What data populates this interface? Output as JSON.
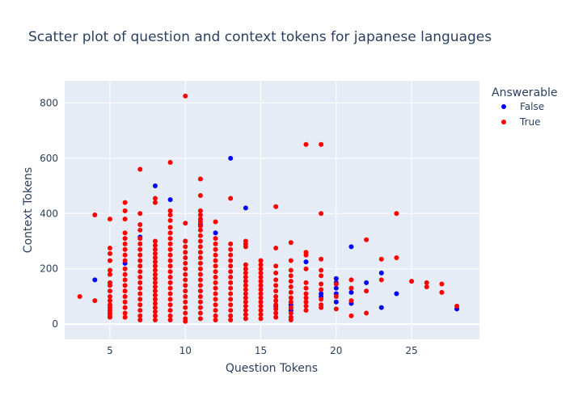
{
  "chart_data": {
    "type": "scatter",
    "title": "Scatter plot of question and context tokens for japanese languages",
    "xlabel": "Question Tokens",
    "ylabel": "Context Tokens",
    "xlim": [
      2,
      29.5
    ],
    "ylim": [
      -55,
      880
    ],
    "xticks": [
      5,
      10,
      15,
      20,
      25
    ],
    "yticks": [
      0,
      200,
      400,
      600,
      800
    ],
    "grid": true,
    "legend": {
      "title": "Answerable",
      "placement": "top-right"
    },
    "colors": {
      "plot_bg": "#e5ecf6",
      "grid": "#ffffff",
      "text": "#2a3f5f"
    },
    "series": [
      {
        "name": "False",
        "color": "#0000ff",
        "points": [
          [
            4,
            160
          ],
          [
            6,
            220
          ],
          [
            7,
            315
          ],
          [
            8,
            500
          ],
          [
            9,
            450
          ],
          [
            10,
            300
          ],
          [
            11,
            360
          ],
          [
            12,
            330
          ],
          [
            13,
            600
          ],
          [
            14,
            420
          ],
          [
            16,
            65
          ],
          [
            17,
            50
          ],
          [
            17,
            70
          ],
          [
            18,
            225
          ],
          [
            19,
            100
          ],
          [
            19,
            110
          ],
          [
            20,
            80
          ],
          [
            20,
            110
          ],
          [
            20,
            130
          ],
          [
            20,
            150
          ],
          [
            20,
            165
          ],
          [
            21,
            75
          ],
          [
            21,
            115
          ],
          [
            21,
            280
          ],
          [
            22,
            150
          ],
          [
            23,
            60
          ],
          [
            23,
            185
          ],
          [
            24,
            110
          ],
          [
            28,
            55
          ]
        ]
      },
      {
        "name": "True",
        "color": "#ff0000",
        "points": [
          [
            3,
            100
          ],
          [
            4,
            395
          ],
          [
            4,
            85
          ],
          [
            5,
            380
          ],
          [
            5,
            275
          ],
          [
            5,
            255
          ],
          [
            5,
            230
          ],
          [
            5,
            195
          ],
          [
            5,
            180
          ],
          [
            5,
            150
          ],
          [
            5,
            140
          ],
          [
            5,
            120
          ],
          [
            5,
            100
          ],
          [
            5,
            85
          ],
          [
            5,
            70
          ],
          [
            5,
            60
          ],
          [
            5,
            50
          ],
          [
            5,
            40
          ],
          [
            5,
            30
          ],
          [
            5,
            25
          ],
          [
            6,
            440
          ],
          [
            6,
            410
          ],
          [
            6,
            380
          ],
          [
            6,
            330
          ],
          [
            6,
            310
          ],
          [
            6,
            290
          ],
          [
            6,
            270
          ],
          [
            6,
            250
          ],
          [
            6,
            230
          ],
          [
            6,
            200
          ],
          [
            6,
            180
          ],
          [
            6,
            160
          ],
          [
            6,
            140
          ],
          [
            6,
            120
          ],
          [
            6,
            100
          ],
          [
            6,
            80
          ],
          [
            6,
            60
          ],
          [
            6,
            40
          ],
          [
            6,
            25
          ],
          [
            7,
            560
          ],
          [
            7,
            400
          ],
          [
            7,
            360
          ],
          [
            7,
            340
          ],
          [
            7,
            310
          ],
          [
            7,
            290
          ],
          [
            7,
            270
          ],
          [
            7,
            250
          ],
          [
            7,
            230
          ],
          [
            7,
            210
          ],
          [
            7,
            190
          ],
          [
            7,
            170
          ],
          [
            7,
            150
          ],
          [
            7,
            130
          ],
          [
            7,
            110
          ],
          [
            7,
            90
          ],
          [
            7,
            70
          ],
          [
            7,
            50
          ],
          [
            7,
            30
          ],
          [
            7,
            15
          ],
          [
            8,
            455
          ],
          [
            8,
            440
          ],
          [
            8,
            300
          ],
          [
            8,
            285
          ],
          [
            8,
            270
          ],
          [
            8,
            255
          ],
          [
            8,
            240
          ],
          [
            8,
            225
          ],
          [
            8,
            210
          ],
          [
            8,
            195
          ],
          [
            8,
            180
          ],
          [
            8,
            165
          ],
          [
            8,
            150
          ],
          [
            8,
            135
          ],
          [
            8,
            120
          ],
          [
            8,
            105
          ],
          [
            8,
            90
          ],
          [
            8,
            75
          ],
          [
            8,
            60
          ],
          [
            8,
            45
          ],
          [
            8,
            30
          ],
          [
            8,
            15
          ],
          [
            9,
            585
          ],
          [
            9,
            410
          ],
          [
            9,
            395
          ],
          [
            9,
            375
          ],
          [
            9,
            350
          ],
          [
            9,
            330
          ],
          [
            9,
            310
          ],
          [
            9,
            290
          ],
          [
            9,
            270
          ],
          [
            9,
            250
          ],
          [
            9,
            230
          ],
          [
            9,
            210
          ],
          [
            9,
            190
          ],
          [
            9,
            170
          ],
          [
            9,
            150
          ],
          [
            9,
            130
          ],
          [
            9,
            110
          ],
          [
            9,
            90
          ],
          [
            9,
            70
          ],
          [
            9,
            50
          ],
          [
            9,
            30
          ],
          [
            9,
            15
          ],
          [
            10,
            825
          ],
          [
            10,
            365
          ],
          [
            10,
            300
          ],
          [
            10,
            280
          ],
          [
            10,
            260
          ],
          [
            10,
            240
          ],
          [
            10,
            220
          ],
          [
            10,
            200
          ],
          [
            10,
            180
          ],
          [
            10,
            160
          ],
          [
            10,
            140
          ],
          [
            10,
            120
          ],
          [
            10,
            100
          ],
          [
            10,
            80
          ],
          [
            10,
            60
          ],
          [
            10,
            40
          ],
          [
            10,
            20
          ],
          [
            10,
            10
          ],
          [
            11,
            525
          ],
          [
            11,
            465
          ],
          [
            11,
            410
          ],
          [
            11,
            395
          ],
          [
            11,
            380
          ],
          [
            11,
            370
          ],
          [
            11,
            355
          ],
          [
            11,
            340
          ],
          [
            11,
            320
          ],
          [
            11,
            300
          ],
          [
            11,
            280
          ],
          [
            11,
            260
          ],
          [
            11,
            240
          ],
          [
            11,
            220
          ],
          [
            11,
            200
          ],
          [
            11,
            180
          ],
          [
            11,
            160
          ],
          [
            11,
            140
          ],
          [
            11,
            120
          ],
          [
            11,
            100
          ],
          [
            11,
            80
          ],
          [
            11,
            60
          ],
          [
            11,
            40
          ],
          [
            11,
            20
          ],
          [
            12,
            370
          ],
          [
            12,
            310
          ],
          [
            12,
            290
          ],
          [
            12,
            270
          ],
          [
            12,
            250
          ],
          [
            12,
            230
          ],
          [
            12,
            210
          ],
          [
            12,
            190
          ],
          [
            12,
            170
          ],
          [
            12,
            150
          ],
          [
            12,
            130
          ],
          [
            12,
            110
          ],
          [
            12,
            90
          ],
          [
            12,
            70
          ],
          [
            12,
            50
          ],
          [
            12,
            30
          ],
          [
            12,
            15
          ],
          [
            13,
            455
          ],
          [
            13,
            290
          ],
          [
            13,
            270
          ],
          [
            13,
            250
          ],
          [
            13,
            230
          ],
          [
            13,
            210
          ],
          [
            13,
            190
          ],
          [
            13,
            170
          ],
          [
            13,
            150
          ],
          [
            13,
            130
          ],
          [
            13,
            110
          ],
          [
            13,
            90
          ],
          [
            13,
            70
          ],
          [
            13,
            50
          ],
          [
            13,
            30
          ],
          [
            13,
            15
          ],
          [
            14,
            300
          ],
          [
            14,
            290
          ],
          [
            14,
            280
          ],
          [
            14,
            215
          ],
          [
            14,
            200
          ],
          [
            14,
            185
          ],
          [
            14,
            170
          ],
          [
            14,
            155
          ],
          [
            14,
            140
          ],
          [
            14,
            125
          ],
          [
            14,
            110
          ],
          [
            14,
            95
          ],
          [
            14,
            80
          ],
          [
            14,
            65
          ],
          [
            14,
            50
          ],
          [
            14,
            35
          ],
          [
            14,
            20
          ],
          [
            15,
            230
          ],
          [
            15,
            215
          ],
          [
            15,
            200
          ],
          [
            15,
            185
          ],
          [
            15,
            170
          ],
          [
            15,
            155
          ],
          [
            15,
            140
          ],
          [
            15,
            125
          ],
          [
            15,
            110
          ],
          [
            15,
            95
          ],
          [
            15,
            80
          ],
          [
            15,
            65
          ],
          [
            15,
            50
          ],
          [
            15,
            35
          ],
          [
            15,
            20
          ],
          [
            16,
            425
          ],
          [
            16,
            275
          ],
          [
            16,
            210
          ],
          [
            16,
            185
          ],
          [
            16,
            160
          ],
          [
            16,
            140
          ],
          [
            16,
            120
          ],
          [
            16,
            100
          ],
          [
            16,
            85
          ],
          [
            16,
            70
          ],
          [
            16,
            55
          ],
          [
            16,
            40
          ],
          [
            16,
            25
          ],
          [
            17,
            295
          ],
          [
            17,
            230
          ],
          [
            17,
            195
          ],
          [
            17,
            175
          ],
          [
            17,
            155
          ],
          [
            17,
            135
          ],
          [
            17,
            115
          ],
          [
            17,
            95
          ],
          [
            17,
            80
          ],
          [
            17,
            60
          ],
          [
            17,
            40
          ],
          [
            17,
            25
          ],
          [
            17,
            15
          ],
          [
            18,
            650
          ],
          [
            18,
            260
          ],
          [
            18,
            250
          ],
          [
            18,
            200
          ],
          [
            18,
            150
          ],
          [
            18,
            130
          ],
          [
            18,
            110
          ],
          [
            18,
            95
          ],
          [
            18,
            80
          ],
          [
            18,
            65
          ],
          [
            18,
            50
          ],
          [
            19,
            650
          ],
          [
            19,
            400
          ],
          [
            19,
            235
          ],
          [
            19,
            195
          ],
          [
            19,
            175
          ],
          [
            19,
            145
          ],
          [
            19,
            125
          ],
          [
            19,
            90
          ],
          [
            19,
            70
          ],
          [
            19,
            60
          ],
          [
            20,
            145
          ],
          [
            20,
            100
          ],
          [
            20,
            55
          ],
          [
            21,
            160
          ],
          [
            21,
            130
          ],
          [
            21,
            85
          ],
          [
            21,
            30
          ],
          [
            22,
            305
          ],
          [
            22,
            120
          ],
          [
            22,
            40
          ],
          [
            23,
            235
          ],
          [
            23,
            160
          ],
          [
            24,
            400
          ],
          [
            24,
            240
          ],
          [
            25,
            155
          ],
          [
            26,
            150
          ],
          [
            26,
            135
          ],
          [
            27,
            145
          ],
          [
            27,
            115
          ],
          [
            28,
            65
          ]
        ]
      }
    ]
  }
}
